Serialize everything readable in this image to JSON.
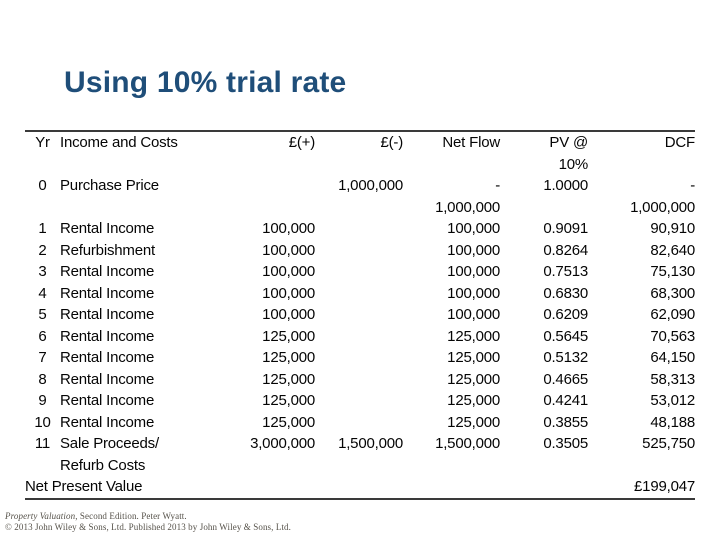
{
  "slide": {
    "title": "Using 10% trial rate"
  },
  "table": {
    "headers": {
      "yr": "Yr",
      "item": "Income and Costs",
      "pos": "£(+)",
      "neg": "£(-)",
      "net": "Net Flow",
      "pv": "PV @\n10%",
      "dcf": "DCF"
    },
    "rows": [
      {
        "yr": "0",
        "item": "Purchase Price",
        "pos": "",
        "neg": "1,000,000",
        "net": "-\n1,000,000",
        "pv": "1.0000",
        "dcf": "-\n1,000,000"
      },
      {
        "yr": "1",
        "item": "Rental Income",
        "pos": "100,000",
        "neg": "",
        "net": "100,000",
        "pv": "0.9091",
        "dcf": "90,910"
      },
      {
        "yr": "2",
        "item": "Refurbishment",
        "pos": "100,000",
        "neg": "",
        "net": "100,000",
        "pv": "0.8264",
        "dcf": "82,640"
      },
      {
        "yr": "3",
        "item": "Rental Income",
        "pos": "100,000",
        "neg": "",
        "net": "100,000",
        "pv": "0.7513",
        "dcf": "75,130"
      },
      {
        "yr": "4",
        "item": "Rental Income",
        "pos": "100,000",
        "neg": "",
        "net": "100,000",
        "pv": "0.6830",
        "dcf": "68,300"
      },
      {
        "yr": "5",
        "item": "Rental Income",
        "pos": "100,000",
        "neg": "",
        "net": "100,000",
        "pv": "0.6209",
        "dcf": "62,090"
      },
      {
        "yr": "6",
        "item": "Rental Income",
        "pos": "125,000",
        "neg": "",
        "net": "125,000",
        "pv": "0.5645",
        "dcf": "70,563"
      },
      {
        "yr": "7",
        "item": "Rental Income",
        "pos": "125,000",
        "neg": "",
        "net": "125,000",
        "pv": "0.5132",
        "dcf": "64,150"
      },
      {
        "yr": "8",
        "item": "Rental Income",
        "pos": "125,000",
        "neg": "",
        "net": "125,000",
        "pv": "0.4665",
        "dcf": "58,313"
      },
      {
        "yr": "9",
        "item": "Rental Income",
        "pos": "125,000",
        "neg": "",
        "net": "125,000",
        "pv": "0.4241",
        "dcf": "53,012"
      },
      {
        "yr": "10",
        "item": "Rental Income",
        "pos": "125,000",
        "neg": "",
        "net": "125,000",
        "pv": "0.3855",
        "dcf": "48,188"
      },
      {
        "yr": "11",
        "item": "Sale Proceeds/\nRefurb Costs",
        "pos": "3,000,000",
        "neg": "1,500,000",
        "net": "1,500,000",
        "pv": "0.3505",
        "dcf": "525,750"
      }
    ],
    "npv": {
      "label": "Net Present Value",
      "value": "£199,047"
    }
  },
  "footnote": {
    "book_title": "Property Valuation",
    "line1_rest": ", Second Edition. Peter Wyatt.",
    "line2": "© 2013 John Wiley & Sons, Ltd. Published 2013 by John Wiley & Sons, Ltd."
  },
  "colors": {
    "title": "#1f4e79",
    "rule": "#3a3a3a",
    "footnote_text": "#56524a"
  }
}
